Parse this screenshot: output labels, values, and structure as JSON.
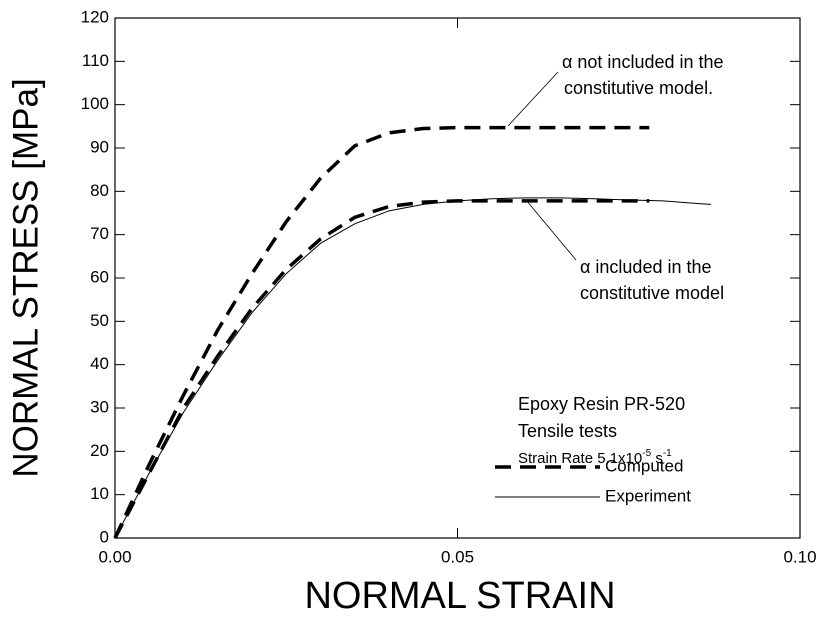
{
  "chart_data": {
    "type": "line",
    "xlabel": "NORMAL STRAIN",
    "ylabel": "NORMAL STRESS [MPa]",
    "xlim": [
      0,
      0.1
    ],
    "ylim": [
      0,
      120
    ],
    "xticks": [
      {
        "value": 0,
        "label": "0.00"
      },
      0.05,
      {
        "value": 0.1,
        "label": "0.10"
      }
    ],
    "yticks": [
      0,
      10,
      20,
      30,
      40,
      50,
      60,
      70,
      80,
      90,
      100,
      110,
      120
    ],
    "series": [
      {
        "color": "#000000",
        "style": "dashed",
        "x": [
          0,
          0.005,
          0.01,
          0.015,
          0.02,
          0.025,
          0.03,
          0.035,
          0.04,
          0.045,
          0.05,
          0.06,
          0.07,
          0.078
        ],
        "values": [
          0,
          17,
          33,
          48,
          61,
          73,
          83,
          90.5,
          93.5,
          94.5,
          94.7,
          94.7,
          94.7,
          94.7
        ]
      },
      {
        "name": "Computed",
        "color": "#000000",
        "style": "dashed",
        "x": [
          0,
          0.005,
          0.01,
          0.015,
          0.02,
          0.025,
          0.03,
          0.035,
          0.04,
          0.045,
          0.05,
          0.06,
          0.07,
          0.078
        ],
        "values": [
          0,
          15,
          30,
          42,
          53,
          62,
          69,
          74,
          76.5,
          77.5,
          77.8,
          77.8,
          77.8,
          77.8
        ]
      },
      {
        "name": "Experiment",
        "color": "#000000",
        "style": "solid",
        "x": [
          0,
          0.005,
          0.01,
          0.015,
          0.02,
          0.025,
          0.03,
          0.035,
          0.04,
          0.045,
          0.05,
          0.055,
          0.06,
          0.065,
          0.07,
          0.075,
          0.08,
          0.085,
          0.087
        ],
        "values": [
          0,
          15,
          29,
          41,
          52,
          61,
          68,
          72.5,
          75.5,
          77,
          77.8,
          78.3,
          78.5,
          78.5,
          78.3,
          78,
          77.8,
          77.2,
          77
        ]
      }
    ],
    "annotations": {
      "not_included": [
        "α not included in the",
        "constitutive model."
      ],
      "included": [
        "α included in the",
        "constitutive model"
      ],
      "material": "Epoxy Resin PR-520",
      "test": "Tensile tests",
      "strain_rate": [
        "Strain Rate 5.1x10",
        "-5",
        " s",
        "-1"
      ]
    }
  }
}
